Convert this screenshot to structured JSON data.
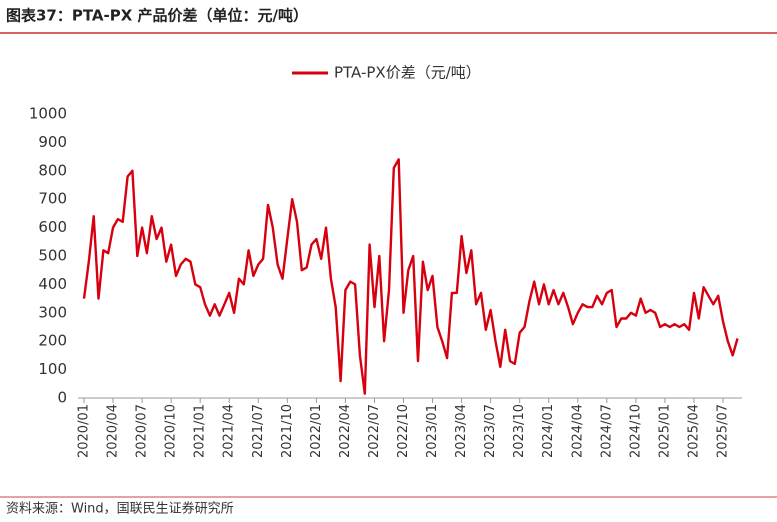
{
  "title": "图表37：PTA-PX 产品价差（单位：元/吨）",
  "source": "资料来源：Wind，国联民生证券研究所",
  "chart_data": {
    "type": "line",
    "categories": [
      "2020/01",
      null,
      null,
      null,
      null,
      null,
      "2020/04",
      null,
      null,
      null,
      null,
      null,
      "2020/07",
      null,
      null,
      null,
      null,
      null,
      "2020/10",
      null,
      null,
      null,
      null,
      null,
      "2021/01",
      null,
      null,
      null,
      null,
      null,
      "2021/04",
      null,
      null,
      null,
      null,
      null,
      "2021/07",
      null,
      null,
      null,
      null,
      null,
      "2021/10",
      null,
      null,
      null,
      null,
      null,
      "2022/01",
      null,
      null,
      null,
      null,
      null,
      "2022/04",
      null,
      null,
      null,
      null,
      null,
      "2022/07",
      null,
      null,
      null,
      null,
      null,
      "2022/10",
      null,
      null,
      null,
      null,
      null,
      "2023/01",
      null,
      null,
      null,
      null,
      null,
      "2023/04",
      null,
      null,
      null,
      null,
      null,
      "2023/07",
      null,
      null,
      null,
      null,
      null,
      "2023/10",
      null,
      null,
      null,
      null,
      null,
      "2024/01",
      null,
      null,
      null,
      null,
      null,
      "2024/04",
      null,
      null,
      null,
      null,
      null,
      "2024/07",
      null,
      null,
      null,
      null,
      null,
      "2024/10",
      null,
      null,
      null,
      null,
      null,
      "2025/01",
      null,
      null,
      null,
      null,
      null,
      "2025/04",
      null,
      null,
      null,
      null,
      null,
      "2025/07",
      null,
      null,
      null
    ],
    "series": [
      {
        "name": "PTA-PX价差（元/吨）",
        "color": "#d7000f",
        "values": [
          350,
          480,
          640,
          350,
          520,
          510,
          600,
          630,
          620,
          780,
          800,
          500,
          600,
          510,
          640,
          560,
          600,
          480,
          540,
          430,
          470,
          490,
          480,
          400,
          390,
          330,
          290,
          330,
          290,
          330,
          370,
          300,
          420,
          400,
          520,
          430,
          470,
          490,
          680,
          600,
          470,
          420,
          560,
          700,
          620,
          450,
          460,
          540,
          560,
          490,
          600,
          420,
          320,
          60,
          380,
          410,
          400,
          150,
          15,
          540,
          320,
          500,
          200,
          380,
          810,
          840,
          300,
          450,
          500,
          130,
          480,
          380,
          430,
          250,
          200,
          140,
          370,
          370,
          570,
          440,
          520,
          330,
          370,
          240,
          310,
          200,
          110,
          240,
          130,
          120,
          230,
          250,
          340,
          410,
          330,
          400,
          330,
          380,
          330,
          370,
          320,
          260,
          300,
          330,
          320,
          320,
          360,
          330,
          370,
          380,
          250,
          280,
          280,
          300,
          290,
          350,
          300,
          310,
          300,
          250,
          260,
          250,
          260,
          250,
          260,
          240,
          370,
          280,
          390,
          360,
          330,
          360,
          270,
          200,
          150,
          210
        ]
      }
    ],
    "ylim": [
      0,
      1000
    ],
    "yticks": [
      0,
      100,
      200,
      300,
      400,
      500,
      600,
      700,
      800,
      900,
      1000
    ],
    "legend": "top",
    "grid": false
  }
}
